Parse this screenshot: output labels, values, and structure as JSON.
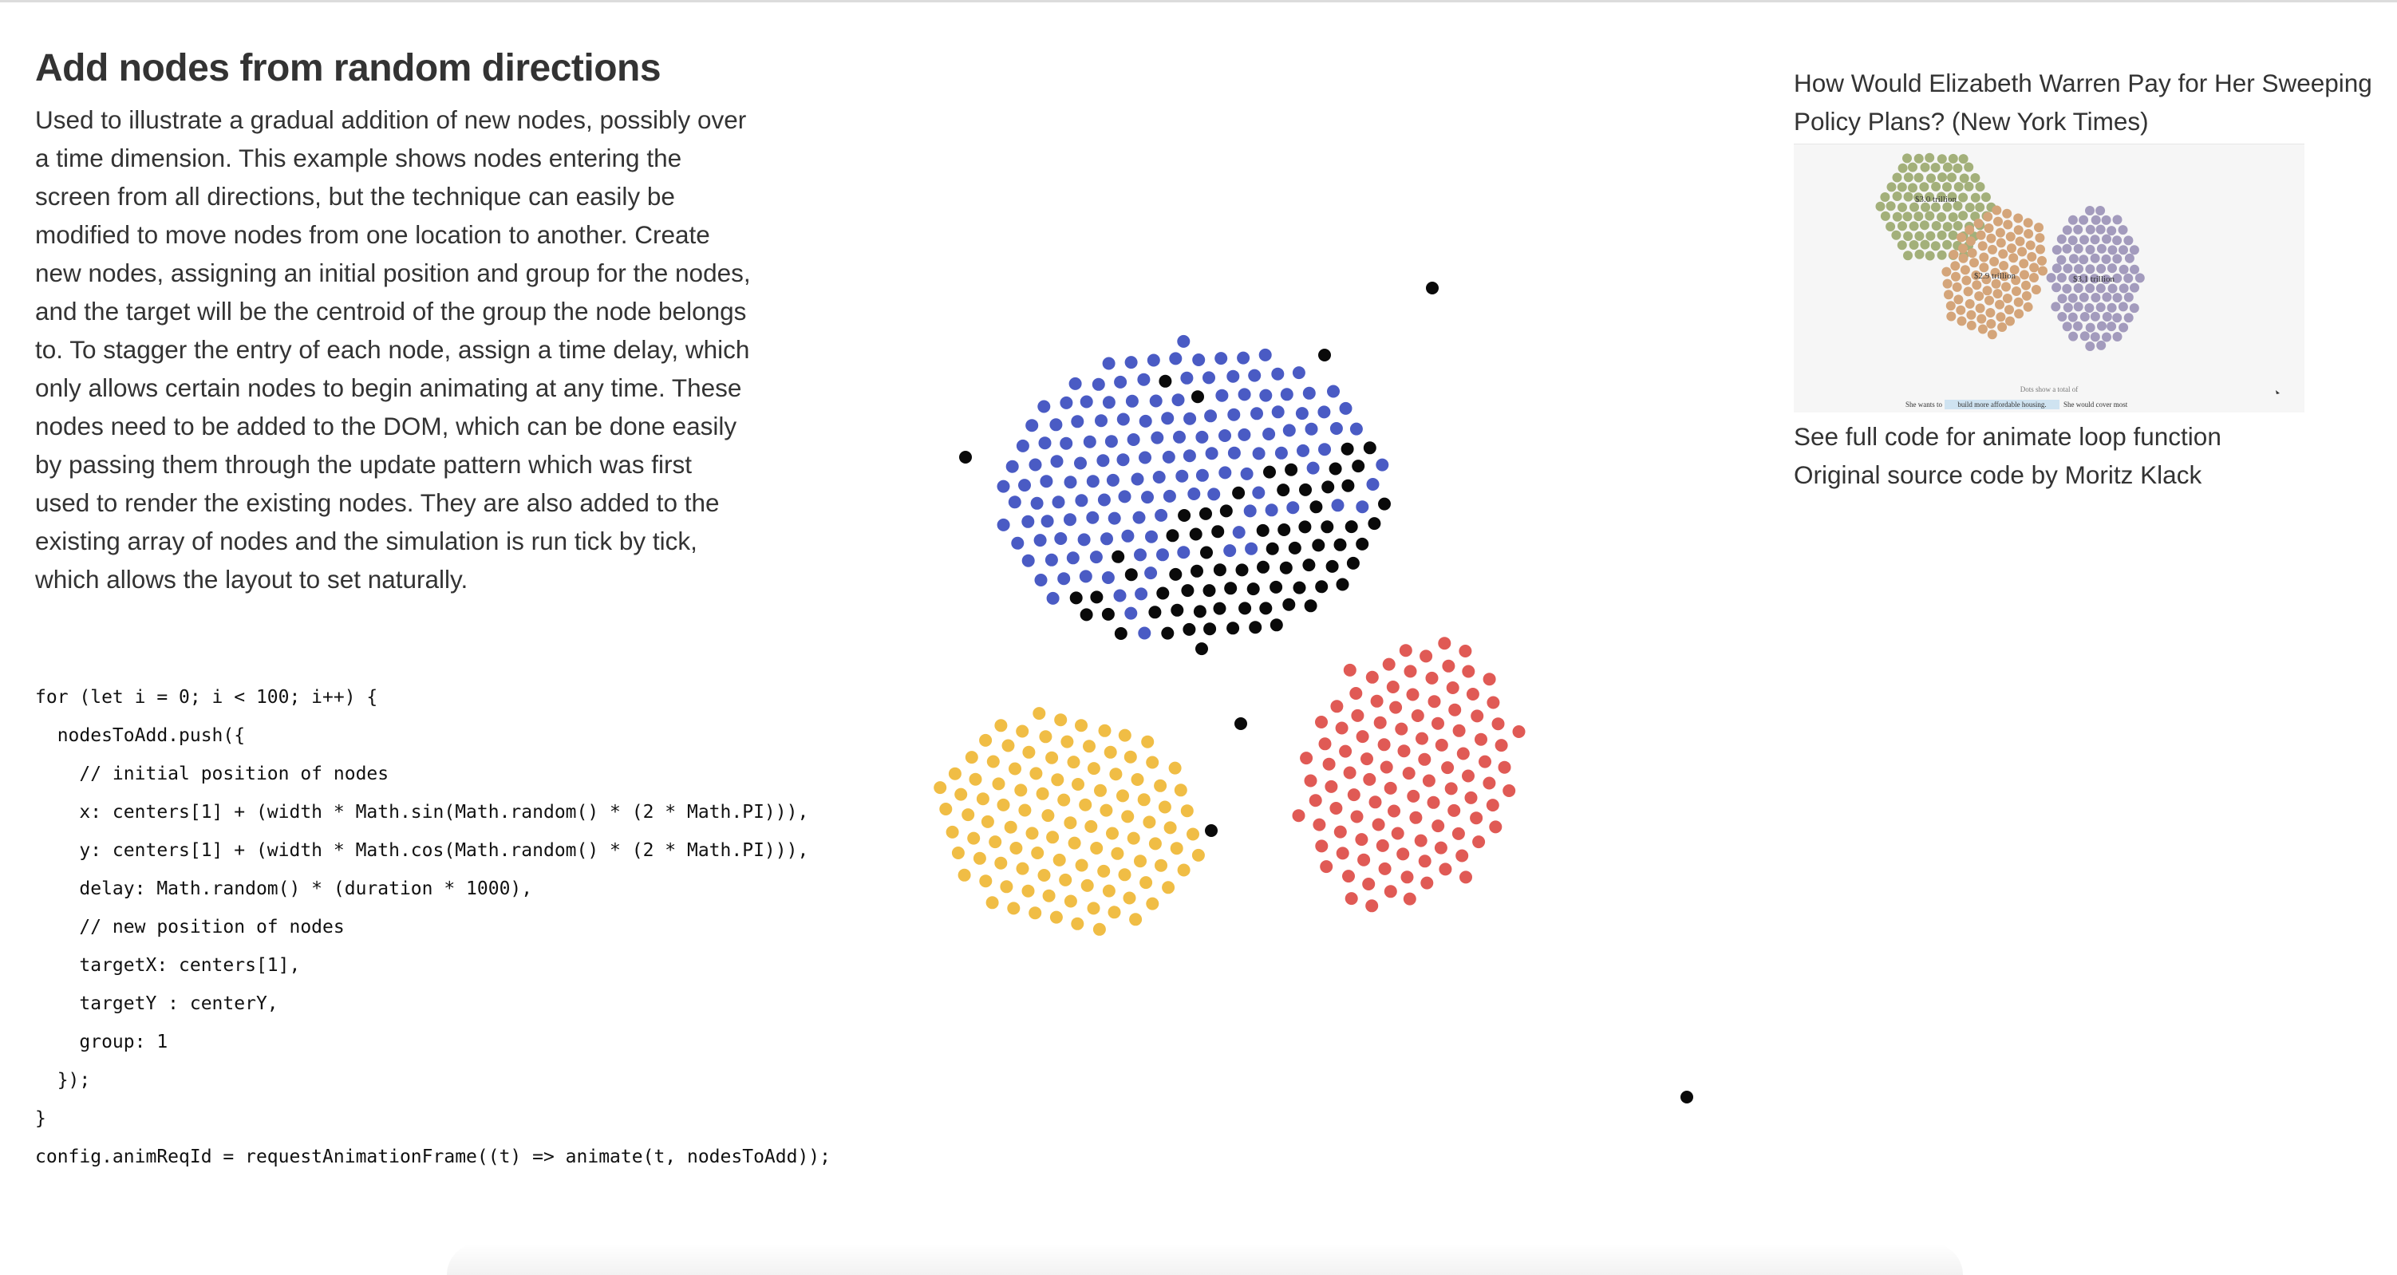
{
  "page": {
    "title": "Add nodes from random directions",
    "description": "Used to illustrate a gradual addition of new nodes, possibly over a time dimension. This example shows nodes entering the screen from all directions, but the technique can easily be modified to move nodes from one location to another. Create new nodes, assigning an initial position and group for the nodes, and the target will be the centroid of the group the node belongs to. To stagger the entry of each node, assign a time delay, which only allows certain nodes to begin animating at any time. These nodes need to be added to the DOM, which can be done easily by passing them through the update pattern which was first used to render the existing nodes. They are also added to the existing array of nodes and the simulation is run tick by tick, which allows the layout to set naturally."
  },
  "code": [
    "for (let i = 0; i < 100; i++) {",
    "  nodesToAdd.push({",
    "    // initial position of nodes",
    "    x: centers[1] + (width * Math.sin(Math.random() * (2 * Math.PI))),",
    "    y: centers[1] + (width * Math.cos(Math.random() * (2 * Math.PI))),",
    "    delay: Math.random() * (duration * 1000),",
    "    // new position of nodes",
    "    targetX: centers[1],",
    "    targetY : centerY,",
    "    group: 1",
    "  });",
    "}",
    "config.animReqId = requestAnimationFrame((t) => animate(t, nodesToAdd));"
  ],
  "viz": {
    "colors": {
      "blue": "#4a5bc4",
      "red": "#e05a55",
      "yellow": "#f0bd45",
      "black": "#0a0a0a"
    }
  },
  "reference": {
    "title": "How Would Elizabeth Warren Pay for Her Sweeping Policy Plans? (New York Times)",
    "thumbnail": {
      "labels": [
        "$3.0 trillion",
        "$2.9 trillion",
        "$3.1 trillion"
      ],
      "caption_top": "Dots show a total of",
      "caption_left": "She wants to",
      "caption_highlight": "build more affordable housing.",
      "caption_right": "She would cover most",
      "colors": {
        "green": "#a3b07a",
        "tan": "#d4a57a",
        "purple": "#a39bbd"
      }
    },
    "links": [
      "See full code for animate loop function",
      "Original source code by Moritz Klack"
    ]
  }
}
